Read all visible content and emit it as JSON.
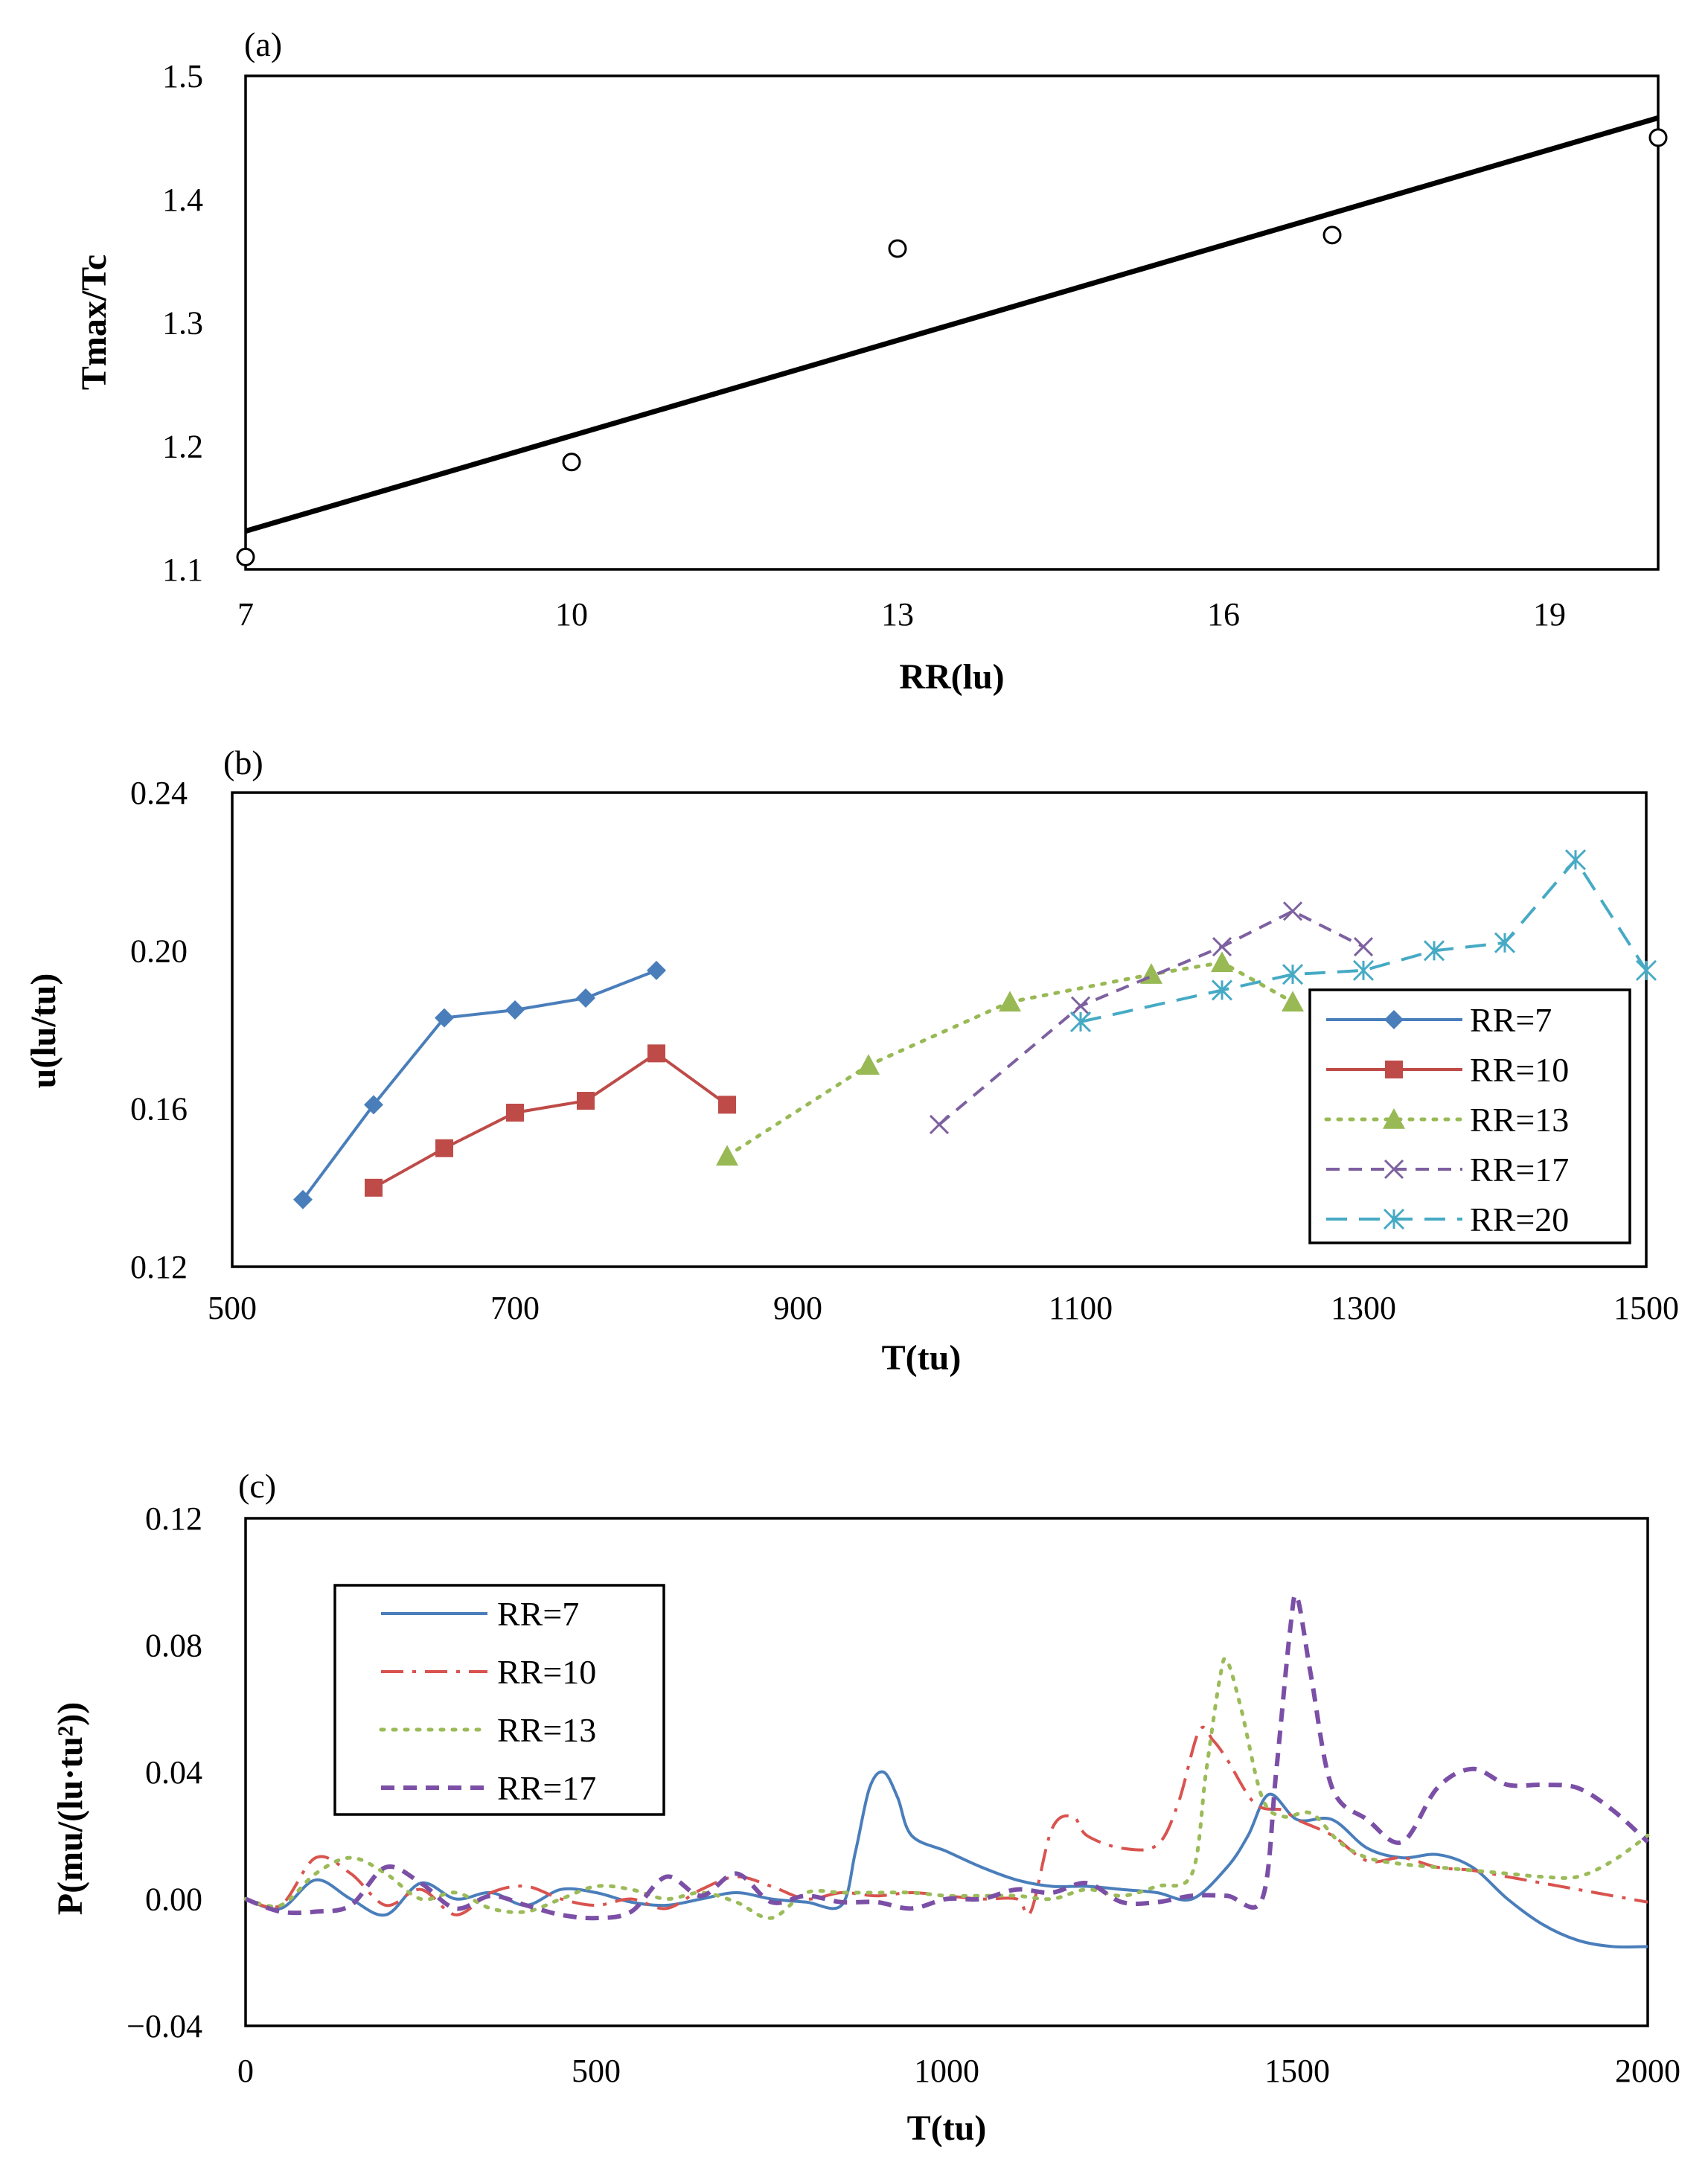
{
  "chart_data": [
    {
      "type": "scatter",
      "panel_label": "(a)",
      "xlabel": "RR(lu)",
      "ylabel": "Tmax/Tc",
      "xlim": [
        7,
        20
      ],
      "ylim": [
        1.1,
        1.5
      ],
      "xticks": [
        7,
        10,
        13,
        16,
        19
      ],
      "xtick_labels": [
        "7",
        "10",
        "13",
        "16",
        "19"
      ],
      "yticks": [
        1.1,
        1.2,
        1.3,
        1.4,
        1.5
      ],
      "ytick_labels": [
        "1.1",
        "1.2",
        "1.3",
        "1.4",
        "1.5"
      ],
      "grid": false,
      "points": {
        "x": [
          7,
          10,
          13,
          17,
          20
        ],
        "y": [
          1.11,
          1.187,
          1.36,
          1.371,
          1.45
        ]
      },
      "trendline": {
        "x": [
          7,
          20
        ],
        "y": [
          1.131,
          1.466
        ]
      }
    },
    {
      "type": "line",
      "panel_label": "(b)",
      "xlabel": "T(tu)",
      "ylabel": "u(lu/tu)",
      "xlim": [
        500,
        1500
      ],
      "ylim": [
        0.12,
        0.24
      ],
      "xticks": [
        500,
        700,
        900,
        1100,
        1300,
        1500
      ],
      "xtick_labels": [
        "500",
        "700",
        "900",
        "1100",
        "1300",
        "1500"
      ],
      "yticks": [
        0.12,
        0.16,
        0.2,
        0.24
      ],
      "ytick_labels": [
        "0.12",
        "0.16",
        "0.20",
        "0.24"
      ],
      "grid": false,
      "legend_position": "right",
      "series": [
        {
          "name": "RR=7",
          "color": "#4a7ebb",
          "marker": "diamond",
          "dash": "solid",
          "x": [
            550,
            600,
            650,
            700,
            750,
            800
          ],
          "y": [
            0.137,
            0.161,
            0.183,
            0.185,
            0.188,
            0.195
          ]
        },
        {
          "name": "RR=10",
          "color": "#be4b48",
          "marker": "square",
          "dash": "solid",
          "x": [
            600,
            650,
            700,
            750,
            800,
            850
          ],
          "y": [
            0.14,
            0.15,
            0.159,
            0.162,
            0.174,
            0.161
          ]
        },
        {
          "name": "RR=13",
          "color": "#98b954",
          "marker": "triangle",
          "dash": "dot",
          "x": [
            850,
            950,
            1050,
            1150,
            1200,
            1250
          ],
          "y": [
            0.148,
            0.171,
            0.187,
            0.194,
            0.197,
            0.187
          ]
        },
        {
          "name": "RR=17",
          "color": "#7d60a0",
          "marker": "x",
          "dash": "dash",
          "x": [
            1000,
            1100,
            1200,
            1250,
            1300
          ],
          "y": [
            0.156,
            0.186,
            0.201,
            0.21,
            0.201
          ]
        },
        {
          "name": "RR=20",
          "color": "#46aac5",
          "marker": "asterisk",
          "dash": "longdash",
          "x": [
            1100,
            1200,
            1250,
            1300,
            1350,
            1400,
            1450,
            1500
          ],
          "y": [
            0.182,
            0.19,
            0.194,
            0.195,
            0.2,
            0.202,
            0.223,
            0.195
          ]
        }
      ]
    },
    {
      "type": "line",
      "panel_label": "(c)",
      "xlabel": "T(tu)",
      "ylabel": "P(mu/(lu·tu²))",
      "xlim": [
        0,
        2000
      ],
      "ylim": [
        -0.04,
        0.12
      ],
      "xticks": [
        0,
        500,
        1000,
        1500,
        2000
      ],
      "xtick_labels": [
        "0",
        "500",
        "1000",
        "1500",
        "2000"
      ],
      "yticks": [
        -0.04,
        0,
        0.04,
        0.08,
        0.12
      ],
      "ytick_labels": [
        "-0.04",
        "0.00",
        "0.04",
        "0.08",
        "0.12"
      ],
      "grid": false,
      "legend_position": "top-left",
      "series": [
        {
          "name": "RR=7",
          "color": "#4a7ebb",
          "dash": "solid",
          "x": [
            0,
            50,
            100,
            150,
            200,
            250,
            300,
            350,
            400,
            450,
            500,
            550,
            600,
            650,
            700,
            750,
            800,
            850,
            870,
            890,
            910,
            930,
            950,
            1000,
            1050,
            1100,
            1150,
            1200,
            1250,
            1300,
            1350,
            1400,
            1430,
            1460,
            1500,
            1550,
            1600,
            1650,
            1700,
            1750,
            1800,
            1850,
            1900,
            1950,
            2000
          ],
          "y": [
            0,
            -0.003,
            0.006,
            0.0,
            -0.005,
            0.005,
            0.0,
            0.002,
            -0.002,
            0.003,
            0.002,
            -0.001,
            -0.002,
            0.0,
            0.002,
            0.0,
            -0.001,
            -0.002,
            0.015,
            0.035,
            0.04,
            0.032,
            0.02,
            0.015,
            0.01,
            0.006,
            0.004,
            0.004,
            0.003,
            0.002,
            0.0,
            0.01,
            0.02,
            0.033,
            0.025,
            0.025,
            0.016,
            0.013,
            0.014,
            0.01,
            0.0,
            -0.008,
            -0.013,
            -0.015,
            -0.015
          ]
        },
        {
          "name": "RR=10",
          "color": "#d9534f",
          "dash": "dashdot",
          "x": [
            0,
            50,
            100,
            150,
            200,
            250,
            300,
            350,
            400,
            450,
            500,
            550,
            600,
            650,
            700,
            750,
            800,
            850,
            900,
            950,
            1000,
            1050,
            1100,
            1120,
            1150,
            1180,
            1200,
            1250,
            1300,
            1330,
            1360,
            1380,
            1400,
            1440,
            1480,
            1500,
            1550,
            1600,
            1650,
            1700,
            1750,
            1800,
            1850,
            1900,
            1950,
            2000
          ],
          "y": [
            0,
            -0.002,
            0.013,
            0.008,
            -0.002,
            0.003,
            -0.005,
            0.002,
            0.004,
            0.0,
            -0.002,
            0.0,
            -0.003,
            0.003,
            0.007,
            0.004,
            0.0,
            0.002,
            0.001,
            0.002,
            0.001,
            0.0,
            0.0,
            -0.004,
            0.022,
            0.026,
            0.02,
            0.016,
            0.017,
            0.03,
            0.053,
            0.05,
            0.044,
            0.03,
            0.028,
            0.025,
            0.02,
            0.012,
            0.013,
            0.01,
            0.009,
            0.007,
            0.005,
            0.003,
            0.001,
            -0.001
          ]
        },
        {
          "name": "RR=13",
          "color": "#9bbb59",
          "dash": "dot",
          "x": [
            0,
            50,
            100,
            150,
            200,
            250,
            300,
            350,
            400,
            450,
            500,
            550,
            600,
            650,
            700,
            750,
            800,
            850,
            900,
            950,
            1000,
            1050,
            1100,
            1150,
            1200,
            1250,
            1300,
            1350,
            1370,
            1390,
            1400,
            1420,
            1450,
            1480,
            1520,
            1560,
            1600,
            1650,
            1700,
            1750,
            1800,
            1850,
            1900,
            1950,
            2000
          ],
          "y": [
            0,
            -0.002,
            0.008,
            0.013,
            0.008,
            0.0,
            0.002,
            -0.003,
            -0.004,
            0.0,
            0.004,
            0.003,
            0.0,
            0.002,
            -0.001,
            -0.006,
            0.002,
            0.002,
            0.002,
            0.002,
            0.001,
            0.001,
            0.001,
            0.0,
            0.003,
            0.001,
            0.004,
            0.008,
            0.04,
            0.07,
            0.075,
            0.06,
            0.032,
            0.026,
            0.027,
            0.018,
            0.013,
            0.011,
            0.01,
            0.009,
            0.008,
            0.007,
            0.007,
            0.012,
            0.02
          ]
        },
        {
          "name": "RR=17",
          "color": "#7b4fa6",
          "dash": "dash",
          "x": [
            0,
            50,
            100,
            150,
            200,
            250,
            300,
            350,
            400,
            450,
            500,
            550,
            600,
            650,
            700,
            750,
            800,
            850,
            900,
            950,
            1000,
            1050,
            1100,
            1150,
            1200,
            1250,
            1300,
            1350,
            1400,
            1450,
            1470,
            1490,
            1500,
            1520,
            1550,
            1600,
            1650,
            1700,
            1750,
            1800,
            1850,
            1900,
            1950,
            2000
          ],
          "y": [
            0,
            -0.004,
            -0.004,
            -0.002,
            0.01,
            0.005,
            -0.003,
            0.001,
            -0.002,
            -0.005,
            -0.006,
            -0.004,
            0.007,
            0.001,
            0.008,
            -0.001,
            0.001,
            -0.001,
            -0.001,
            -0.003,
            0.0,
            0.0,
            0.003,
            0.002,
            0.005,
            -0.001,
            -0.001,
            0.001,
            0.001,
            0.0,
            0.04,
            0.085,
            0.095,
            0.07,
            0.035,
            0.025,
            0.018,
            0.035,
            0.041,
            0.036,
            0.036,
            0.035,
            0.028,
            0.018
          ]
        }
      ]
    }
  ]
}
